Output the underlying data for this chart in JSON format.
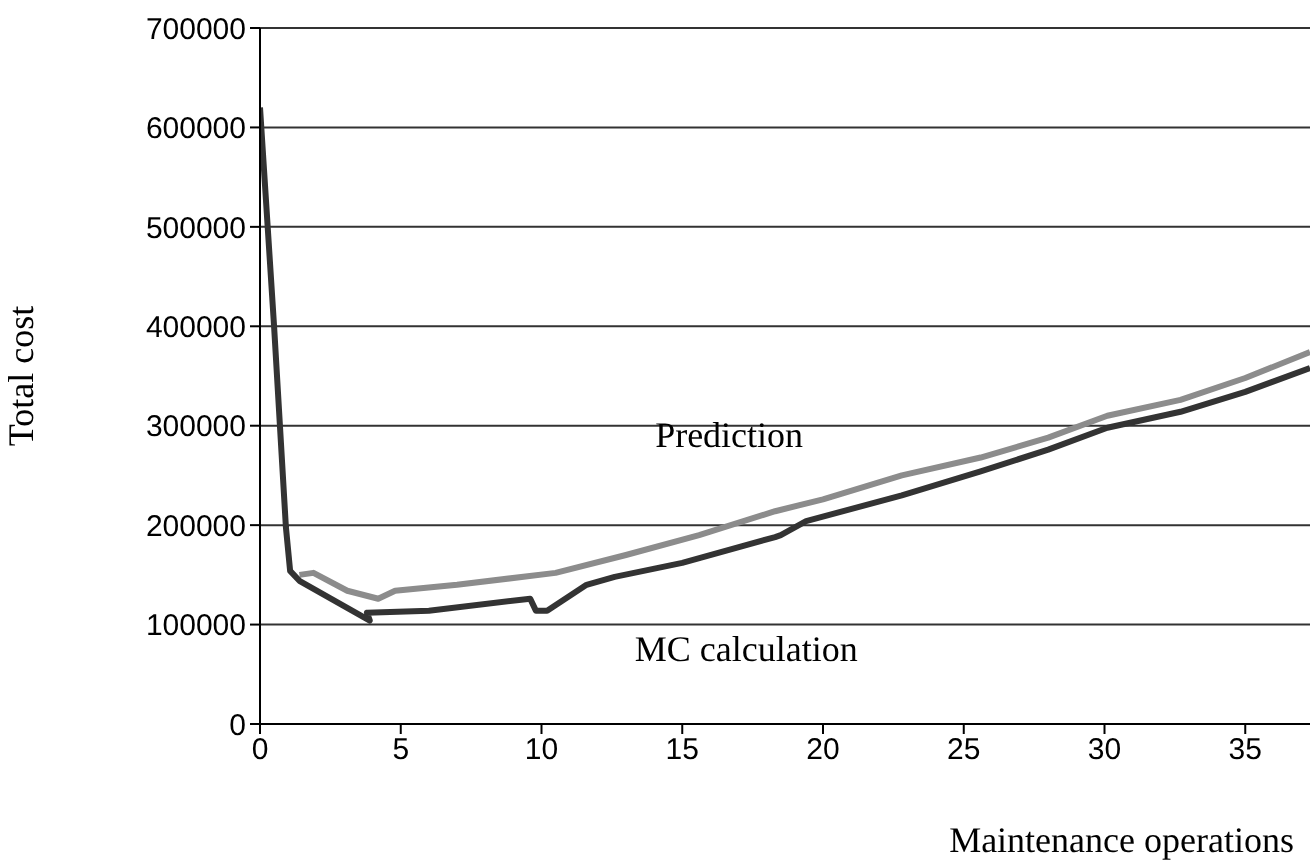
{
  "chart_data": {
    "type": "line",
    "xlabel": "Maintenance operations",
    "ylabel": "Total cost",
    "xlim": [
      0,
      37.3
    ],
    "xticks": [
      0,
      5,
      10,
      15,
      20,
      25,
      30,
      35
    ],
    "ylim": [
      0,
      700000
    ],
    "yticks": [
      0,
      100000,
      200000,
      300000,
      400000,
      500000,
      600000,
      700000
    ],
    "grid": "y",
    "marker": "none",
    "line_style": "solid",
    "series": [
      {
        "name": "Prediction",
        "color": "#8c8c8c",
        "x": [
          1.4,
          1.9,
          3.1,
          4.2,
          4.8,
          7,
          10.5,
          13,
          15.6,
          18.3,
          20,
          22.8,
          25.6,
          28,
          30.1,
          32.7,
          35,
          37.3
        ],
        "values": [
          150000,
          152000,
          134000,
          126000,
          134000,
          140000,
          152000,
          170000,
          190000,
          214000,
          226000,
          250000,
          268000,
          288000,
          310000,
          326000,
          348000,
          374000
        ]
      },
      {
        "name": "MC calculation",
        "color": "#333333",
        "x": [
          0,
          0.5,
          0.92,
          1.07,
          1.4,
          3.9,
          3.8,
          6,
          9.6,
          9.8,
          10.2,
          11.6,
          12.6,
          15,
          18.3,
          18.5,
          19.4,
          22.8,
          25.6,
          28,
          30.1,
          32.7,
          35,
          37.3
        ],
        "values": [
          620000,
          400000,
          198000,
          154000,
          144000,
          104000,
          112000,
          114000,
          126000,
          114000,
          114000,
          140000,
          148000,
          162000,
          188000,
          190000,
          204000,
          230000,
          254000,
          276000,
          298000,
          314000,
          334000,
          358000
        ]
      }
    ]
  }
}
